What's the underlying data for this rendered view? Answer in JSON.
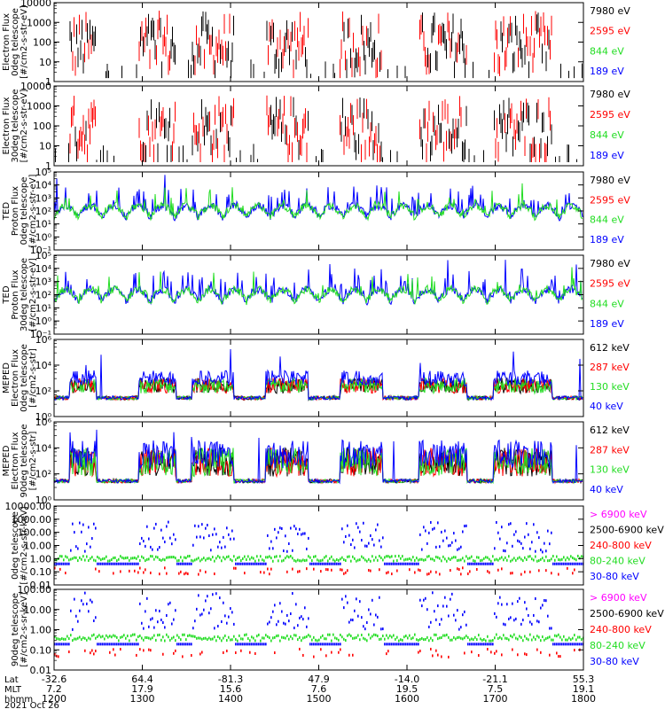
{
  "colors": {
    "black": "#000000",
    "red": "#ff0000",
    "green": "#22dd22",
    "blue": "#0000ff",
    "magenta": "#ff00ff"
  },
  "footer": {
    "rows": [
      {
        "label": "Lat",
        "values": [
          "-32.6",
          "64.4",
          "-81.3",
          "47.9",
          "-14.0",
          "-21.1",
          "55.3"
        ]
      },
      {
        "label": "MLT",
        "values": [
          "7.2",
          "17.9",
          "15.6",
          "7.6",
          "19.5",
          "7.5",
          "19.1"
        ]
      },
      {
        "label": "hhmm",
        "values": [
          "1200",
          "1300",
          "1400",
          "1500",
          "1600",
          "1700",
          "1800"
        ]
      }
    ],
    "date": "2021 Oct 26"
  },
  "chart_data": [
    {
      "type": "line",
      "ylabel": [
        "Electron Flux",
        "0deg telescope",
        "[#/cm2-s-str-eV]"
      ],
      "yscale": "log",
      "ylim": [
        1,
        10000
      ],
      "ytick_labels": [
        "1",
        "10",
        "100",
        "1000",
        "10000"
      ],
      "legend": [
        {
          "label": "7980 eV",
          "color": "black"
        },
        {
          "label": "2595 eV",
          "color": "red"
        },
        {
          "label": "844 eV",
          "color": "green"
        },
        {
          "label": "189 eV",
          "color": "blue"
        }
      ]
    },
    {
      "type": "line",
      "ylabel": [
        "Electron Flux",
        "30deg telescope",
        "[#/cm2-s-str-eV]"
      ],
      "yscale": "log",
      "ylim": [
        1,
        10000
      ],
      "ytick_labels": [
        "1",
        "10",
        "100",
        "1000",
        "10000"
      ],
      "legend": [
        {
          "label": "7980 eV",
          "color": "black"
        },
        {
          "label": "2595 eV",
          "color": "red"
        },
        {
          "label": "844 eV",
          "color": "green"
        },
        {
          "label": "189 eV",
          "color": "blue"
        }
      ]
    },
    {
      "type": "line",
      "ylabel": [
        "TED",
        "Proton Flux",
        "0deg telescope",
        "[#/cm2-s-str-eV]"
      ],
      "yscale": "log",
      "ylim": [
        0.1,
        100000
      ],
      "ytick_labels": [
        "10⁻¹",
        "10⁰",
        "10¹",
        "10²",
        "10³",
        "10⁴",
        "10⁵"
      ],
      "legend": [
        {
          "label": "7980 eV",
          "color": "black"
        },
        {
          "label": "2595 eV",
          "color": "red"
        },
        {
          "label": "844 eV",
          "color": "green"
        },
        {
          "label": "189 eV",
          "color": "blue"
        }
      ]
    },
    {
      "type": "line",
      "ylabel": [
        "TED",
        "Proton Flux",
        "30deg telescope",
        "[#/cm2-s-str-eV]"
      ],
      "yscale": "log",
      "ylim": [
        0.1,
        100000
      ],
      "ytick_labels": [
        "10⁻¹",
        "10⁰",
        "10¹",
        "10²",
        "10³",
        "10⁴",
        "10⁵"
      ],
      "legend": [
        {
          "label": "7980 eV",
          "color": "black"
        },
        {
          "label": "2595 eV",
          "color": "red"
        },
        {
          "label": "844 eV",
          "color": "green"
        },
        {
          "label": "189 eV",
          "color": "blue"
        }
      ]
    },
    {
      "type": "line",
      "ylabel": [
        "MEPED",
        "Electron Flux",
        "0deg telescope",
        "[#/cm2-s-str]"
      ],
      "yscale": "log",
      "ylim": [
        1,
        1000000
      ],
      "ytick_labels": [
        "10⁰",
        "10²",
        "10⁴",
        "10⁶"
      ],
      "legend": [
        {
          "label": "612 keV",
          "color": "black"
        },
        {
          "label": "287 keV",
          "color": "red"
        },
        {
          "label": "130 keV",
          "color": "green"
        },
        {
          "label": "40 keV",
          "color": "blue"
        }
      ]
    },
    {
      "type": "line",
      "ylabel": [
        "MEPED",
        "Electron Flux",
        "90deg telescope",
        "[#/cm2-s-str]"
      ],
      "yscale": "log",
      "ylim": [
        1,
        1000000
      ],
      "ytick_labels": [
        "10⁰",
        "10²",
        "10⁴",
        "10⁶"
      ],
      "legend": [
        {
          "label": "612 keV",
          "color": "black"
        },
        {
          "label": "287 keV",
          "color": "red"
        },
        {
          "label": "130 keV",
          "color": "green"
        },
        {
          "label": "40 keV",
          "color": "blue"
        }
      ]
    },
    {
      "type": "line",
      "ylabel": [
        "0deg telescope",
        "[#/cm2-s-str-keV]"
      ],
      "yscale": "log",
      "ylim": [
        0.01,
        10000
      ],
      "ytick_labels": [
        "0.01",
        "0.10",
        "1.00",
        "10.00",
        "100.00",
        "1000.00",
        "10000.00"
      ],
      "legend": [
        {
          "label": "> 6900 keV",
          "color": "magenta"
        },
        {
          "label": "2500-6900 keV",
          "color": "black"
        },
        {
          "label": "240-800 keV",
          "color": "red"
        },
        {
          "label": "80-240 keV",
          "color": "green"
        },
        {
          "label": "30-80 keV",
          "color": "blue"
        }
      ]
    },
    {
      "type": "line",
      "ylabel": [
        "90deg telescope",
        "[#/cm2-s-sr-keV]"
      ],
      "yscale": "log",
      "ylim": [
        0.01,
        1000
      ],
      "ytick_labels": [
        "0.01",
        "0.10",
        "1.00",
        "10.00",
        "100.00"
      ],
      "legend": [
        {
          "label": "> 6900 keV",
          "color": "magenta"
        },
        {
          "label": "2500-6900 keV",
          "color": "black"
        },
        {
          "label": "240-800 keV",
          "color": "red"
        },
        {
          "label": "80-240 keV",
          "color": "green"
        },
        {
          "label": "30-80 keV",
          "color": "blue"
        }
      ]
    }
  ]
}
